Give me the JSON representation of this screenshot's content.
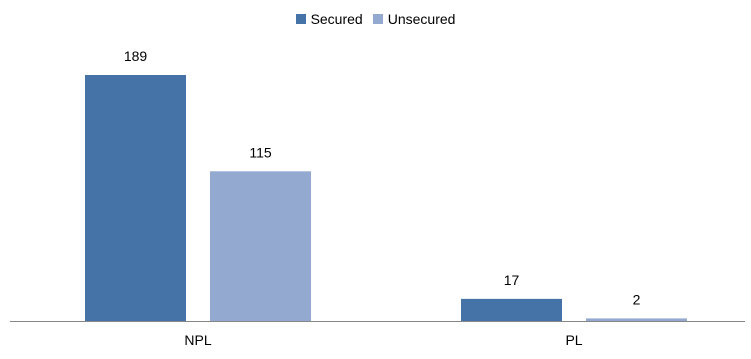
{
  "chart_data": {
    "type": "bar",
    "categories": [
      "NPL",
      "PL"
    ],
    "series": [
      {
        "name": "Secured",
        "values": [
          189,
          17
        ],
        "color": "#4572A7"
      },
      {
        "name": "Unsecured",
        "values": [
          115,
          2
        ],
        "color": "#93A9D0"
      }
    ],
    "ylim": [
      0,
      189
    ],
    "legend": "top-center",
    "grid": false,
    "data_labels": true,
    "title": "",
    "xlabel": "",
    "ylabel": ""
  }
}
